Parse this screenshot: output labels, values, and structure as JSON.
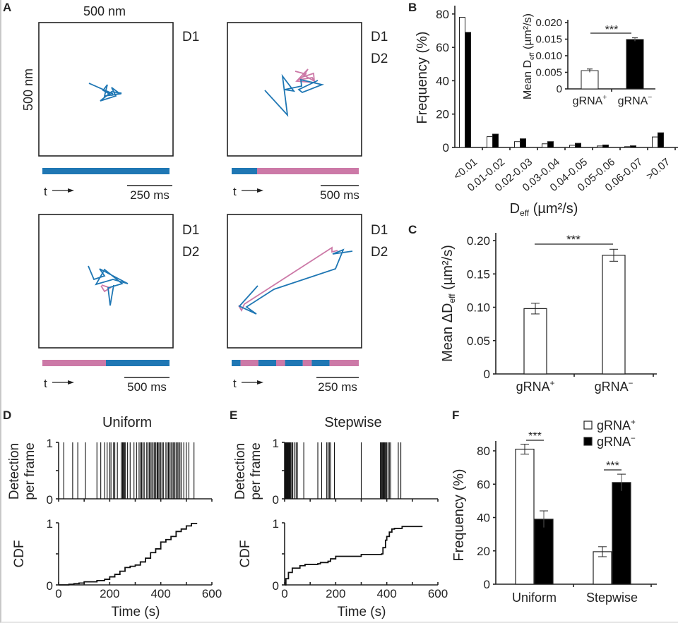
{
  "figure": {
    "panel_labels": [
      "A",
      "B",
      "C",
      "D",
      "E",
      "F"
    ],
    "colors": {
      "D1": "#1f77b4",
      "D2": "#cc79a7",
      "bar_open": "#ffffff",
      "bar_filled": "#000000"
    }
  },
  "panel_a": {
    "scale_x": "500 nm",
    "scale_y": "500 nm",
    "time_arrow": "t",
    "tracks": [
      {
        "legend": [
          "D1"
        ],
        "scalebar": "250 ms",
        "timeline": [
          {
            "state": "D1",
            "fraction": 1.0
          }
        ]
      },
      {
        "legend": [
          "D1",
          "D2"
        ],
        "scalebar": "500 ms",
        "timeline": [
          {
            "state": "D1",
            "fraction": 0.2
          },
          {
            "state": "D2",
            "fraction": 0.8
          }
        ]
      },
      {
        "legend": [
          "D1",
          "D2"
        ],
        "scalebar": "500 ms",
        "timeline": [
          {
            "state": "D2",
            "fraction": 0.5
          },
          {
            "state": "D1",
            "fraction": 0.5
          }
        ]
      },
      {
        "legend": [
          "D1",
          "D2"
        ],
        "scalebar": "250 ms",
        "timeline": [
          {
            "state": "D1",
            "fraction": 0.07
          },
          {
            "state": "D2",
            "fraction": 0.14
          },
          {
            "state": "D1",
            "fraction": 0.14
          },
          {
            "state": "D2",
            "fraction": 0.07
          },
          {
            "state": "D1",
            "fraction": 0.14
          },
          {
            "state": "D2",
            "fraction": 0.07
          },
          {
            "state": "D1",
            "fraction": 0.14
          },
          {
            "state": "D2",
            "fraction": 0.23
          }
        ]
      }
    ]
  },
  "chart_data": [
    {
      "id": "B",
      "type": "bar",
      "title": "",
      "xlabel": "D_eff (µm²/s)",
      "xlabel_main": "D",
      "xlabel_sub": "eff",
      "xlabel_rest": " (µm²/s)",
      "ylabel": "Frequency (%)",
      "ylim": [
        0,
        85
      ],
      "yticks": [
        0,
        20,
        40,
        60,
        80
      ],
      "categories": [
        "<0.01",
        "0.01-0.02",
        "0.02-0.03",
        "0.03-0.04",
        "0.04-0.05",
        "0.05-0.06",
        "0.06-0.07",
        ">0.07"
      ],
      "series": [
        {
          "name": "gRNA+",
          "fill": "open",
          "values": [
            78,
            6.5,
            3.5,
            2.2,
            1.3,
            0.9,
            0.5,
            6.3
          ]
        },
        {
          "name": "gRNA−",
          "fill": "filled",
          "values": [
            69,
            8,
            5.2,
            3.5,
            2.5,
            1.5,
            1.0,
            8.8
          ]
        }
      ],
      "inset": {
        "type": "bar",
        "ylabel": "Mean D_eff (µm²/s)",
        "ylabel_main": "Mean D",
        "ylabel_sub": "eff",
        "ylabel_rest": " (µm²/s)",
        "ylim": [
          0,
          0.02
        ],
        "yticks": [
          "0",
          "0.005",
          "0.010",
          "0.015",
          "0.020"
        ],
        "ytick_values": [
          0,
          0.005,
          0.01,
          0.015,
          0.02
        ],
        "categories": [
          "gRNA+",
          "gRNA−"
        ],
        "cat_main": [
          "gRNA",
          "gRNA"
        ],
        "cat_sup": [
          "+",
          "−"
        ],
        "values": [
          0.0055,
          0.0149
        ],
        "errors": [
          0.0005,
          0.0005
        ],
        "fills": [
          "open",
          "filled"
        ],
        "significance": "***"
      }
    },
    {
      "id": "C",
      "type": "bar",
      "ylabel": "Mean ΔD_eff (µm²/s)",
      "ylabel_main": "Mean ΔD",
      "ylabel_sub": "eff",
      "ylabel_rest": " (µm²/s)",
      "ylim": [
        0,
        0.21
      ],
      "yticks": [
        "0",
        "0.05",
        "0.10",
        "0.15",
        "0.20"
      ],
      "ytick_values": [
        0,
        0.05,
        0.1,
        0.15,
        0.2
      ],
      "categories": [
        "gRNA+",
        "gRNA−"
      ],
      "cat_main": [
        "gRNA",
        "gRNA"
      ],
      "cat_sup": [
        "+",
        "−"
      ],
      "values": [
        0.098,
        0.178
      ],
      "errors": [
        0.008,
        0.009
      ],
      "significance": "***"
    },
    {
      "id": "D",
      "type": "line",
      "title": "Uniform",
      "raster_ylabel": [
        "Detection",
        "per frame"
      ],
      "raster_yticks": [
        "0",
        "1"
      ],
      "cdf_ylabel": "CDF",
      "cdf_yticks": [
        "0",
        "1"
      ],
      "xlabel": "Time (s)",
      "xlim": [
        0,
        600
      ],
      "xticks": [
        0,
        200,
        400,
        600
      ],
      "detections_s": [
        20,
        55,
        75,
        105,
        150,
        165,
        180,
        190,
        200,
        205,
        215,
        220,
        230,
        245,
        250,
        252,
        255,
        258,
        262,
        270,
        280,
        295,
        305,
        315,
        320,
        325,
        330,
        335,
        345,
        350,
        355,
        360,
        365,
        370,
        375,
        380,
        385,
        388,
        390,
        395,
        400,
        405,
        410,
        420,
        425,
        430,
        435,
        440,
        445,
        450,
        455,
        460,
        465,
        470,
        475,
        480,
        490,
        500,
        510,
        530
      ],
      "cdf": {
        "x": [
          0,
          40,
          60,
          80,
          100,
          150,
          180,
          200,
          220,
          240,
          260,
          280,
          300,
          320,
          340,
          360,
          380,
          400,
          420,
          440,
          460,
          480,
          500,
          520,
          540
        ],
        "y": [
          0,
          0.01,
          0.02,
          0.03,
          0.05,
          0.07,
          0.09,
          0.13,
          0.17,
          0.22,
          0.28,
          0.3,
          0.32,
          0.37,
          0.43,
          0.52,
          0.58,
          0.69,
          0.73,
          0.78,
          0.86,
          0.9,
          0.95,
          0.99,
          1.0
        ]
      }
    },
    {
      "id": "E",
      "type": "line",
      "title": "Stepwise",
      "raster_ylabel": [
        "Detection",
        "per frame"
      ],
      "raster_yticks": [
        "0",
        "1"
      ],
      "cdf_ylabel": "CDF",
      "cdf_yticks": [
        "0",
        "1"
      ],
      "xlabel": "Time (s)",
      "xlim": [
        0,
        600
      ],
      "xticks": [
        0,
        200,
        400,
        600
      ],
      "detections_s": [
        1,
        3,
        5,
        7,
        9,
        11,
        13,
        15,
        17,
        19,
        21,
        24,
        28,
        32,
        38,
        45,
        50,
        75,
        130,
        145,
        165,
        170,
        175,
        180,
        195,
        300,
        375,
        378,
        381,
        384,
        387,
        390,
        393,
        396,
        400,
        405,
        410,
        415,
        445,
        455
      ],
      "cdf": {
        "x": [
          0,
          5,
          15,
          30,
          60,
          80,
          130,
          140,
          170,
          180,
          200,
          300,
          380,
          385,
          395,
          400,
          410,
          420,
          430,
          460,
          540
        ],
        "y": [
          0,
          0.1,
          0.2,
          0.27,
          0.31,
          0.33,
          0.34,
          0.36,
          0.38,
          0.42,
          0.46,
          0.49,
          0.5,
          0.6,
          0.72,
          0.78,
          0.85,
          0.9,
          0.91,
          0.94,
          0.94
        ]
      }
    },
    {
      "id": "F",
      "type": "bar",
      "ylabel": "Frequency (%)",
      "ylim": [
        0,
        85
      ],
      "yticks": [
        0,
        20,
        40,
        60,
        80
      ],
      "categories": [
        "Uniform",
        "Stepwise"
      ],
      "legend": [
        {
          "main": "gRNA",
          "sup": "+",
          "fill": "open"
        },
        {
          "main": "gRNA",
          "sup": "−",
          "fill": "filled"
        }
      ],
      "legend_placement": "top-right",
      "series": [
        {
          "name": "gRNA+",
          "fill": "open",
          "values": [
            81,
            19.5
          ],
          "errors": [
            3,
            3
          ]
        },
        {
          "name": "gRNA−",
          "fill": "filled",
          "values": [
            39,
            61
          ],
          "errors": [
            5,
            5
          ]
        }
      ],
      "significance": [
        "***",
        "***"
      ]
    }
  ]
}
